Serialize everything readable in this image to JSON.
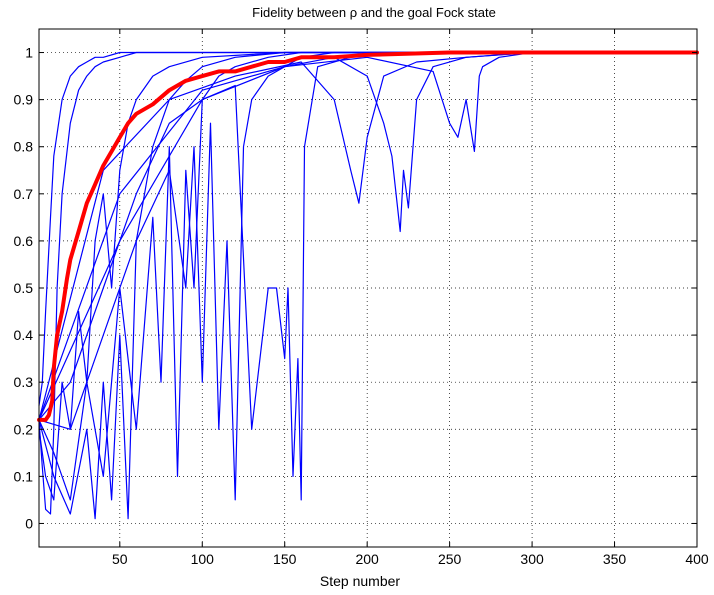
{
  "chart_data": {
    "type": "line",
    "title": "Fidelity between ρ and the goal Fock state",
    "xlabel": "Step number",
    "ylabel": "",
    "xlim": [
      1,
      400
    ],
    "ylim": [
      -0.05,
      1.05
    ],
    "xticks": [
      50,
      100,
      150,
      200,
      250,
      300,
      350,
      400
    ],
    "yticks": [
      0,
      0.1,
      0.2,
      0.3,
      0.4,
      0.5,
      0.6,
      0.7,
      0.8,
      0.9,
      1
    ],
    "ytick_labels": [
      "0",
      "0.1",
      "0.2",
      "0.3",
      "0.4",
      "0.5",
      "0.6",
      "0.7",
      "0.8",
      "0.9",
      "1"
    ],
    "grid": true,
    "colors": {
      "trajectories": "#0000ff",
      "mean": "#ff0000"
    },
    "series": [
      {
        "role": "individual trajectories (approximate envelope samples)",
        "color": "#0000ff",
        "traces": [
          {
            "x": [
              1,
              3,
              5,
              8,
              10,
              15,
              20,
              25,
              30,
              35,
              40,
              50,
              60,
              80,
              100,
              120,
              150,
              200,
              250,
              300,
              400
            ],
            "y": [
              0.25,
              0.3,
              0.45,
              0.65,
              0.78,
              0.9,
              0.95,
              0.97,
              0.98,
              0.99,
              0.99,
              1,
              1,
              1,
              1,
              1,
              1,
              1,
              1,
              1,
              1
            ]
          },
          {
            "x": [
              1,
              3,
              5,
              8,
              10,
              12,
              15,
              20,
              25,
              30,
              35,
              40,
              50,
              60,
              80,
              100,
              150,
              200,
              300,
              400
            ],
            "y": [
              0.22,
              0.12,
              0.03,
              0.02,
              0.2,
              0.5,
              0.7,
              0.85,
              0.92,
              0.95,
              0.97,
              0.98,
              0.99,
              1,
              1,
              1,
              1,
              1,
              1,
              1
            ]
          },
          {
            "x": [
              1,
              5,
              10,
              15,
              20,
              25,
              30,
              35,
              40,
              45,
              50,
              55,
              60,
              70,
              80,
              100,
              150,
              200,
              400
            ],
            "y": [
              0.2,
              0.1,
              0.05,
              0.3,
              0.2,
              0.45,
              0.3,
              0.6,
              0.7,
              0.5,
              0.75,
              0.85,
              0.9,
              0.95,
              0.97,
              0.99,
              1,
              1,
              1
            ]
          },
          {
            "x": [
              1,
              10,
              20,
              30,
              35,
              40,
              45,
              50,
              55,
              60,
              70,
              80,
              90,
              100,
              120,
              150,
              200,
              400
            ],
            "y": [
              0.22,
              0.1,
              0.02,
              0.2,
              0.01,
              0.3,
              0.05,
              0.4,
              0.01,
              0.6,
              0.8,
              0.9,
              0.94,
              0.97,
              0.99,
              1,
              1,
              1
            ]
          },
          {
            "x": [
              1,
              10,
              20,
              30,
              40,
              50,
              60,
              70,
              75,
              80,
              85,
              90,
              95,
              100,
              110,
              120,
              140,
              160,
              200,
              400
            ],
            "y": [
              0.22,
              0.15,
              0.05,
              0.3,
              0.1,
              0.5,
              0.2,
              0.65,
              0.3,
              0.8,
              0.1,
              0.75,
              0.5,
              0.9,
              0.95,
              0.97,
              0.99,
              1,
              1,
              1
            ]
          },
          {
            "x": [
              1,
              20,
              40,
              60,
              80,
              90,
              95,
              100,
              105,
              110,
              115,
              120,
              125,
              130,
              140,
              150,
              160,
              180,
              200,
              400
            ],
            "y": [
              0.22,
              0.2,
              0.4,
              0.6,
              0.75,
              0.5,
              0.8,
              0.3,
              0.85,
              0.2,
              0.6,
              0.05,
              0.8,
              0.9,
              0.95,
              0.97,
              0.99,
              1,
              1,
              1
            ]
          },
          {
            "x": [
              1,
              20,
              40,
              60,
              80,
              100,
              120,
              130,
              140,
              145,
              150,
              152,
              155,
              158,
              160,
              162,
              170,
              200,
              400
            ],
            "y": [
              0.22,
              0.3,
              0.5,
              0.7,
              0.85,
              0.9,
              0.93,
              0.2,
              0.5,
              0.5,
              0.35,
              0.5,
              0.1,
              0.35,
              0.05,
              0.8,
              0.97,
              1,
              1
            ]
          },
          {
            "x": [
              1,
              50,
              100,
              150,
              180,
              200,
              210,
              215,
              220,
              222,
              225,
              230,
              240,
              260,
              300,
              400
            ],
            "y": [
              0.22,
              0.6,
              0.9,
              0.97,
              0.99,
              0.95,
              0.85,
              0.78,
              0.62,
              0.75,
              0.67,
              0.9,
              0.97,
              0.99,
              1,
              1
            ]
          },
          {
            "x": [
              1,
              50,
              100,
              150,
              200,
              240,
              250,
              255,
              260,
              265,
              268,
              270,
              280,
              300,
              400
            ],
            "y": [
              0.22,
              0.7,
              0.92,
              0.97,
              0.99,
              0.96,
              0.85,
              0.82,
              0.9,
              0.79,
              0.95,
              0.97,
              0.99,
              1,
              1
            ]
          },
          {
            "x": [
              1,
              40,
              80,
              120,
              160,
              180,
              190,
              195,
              200,
              210,
              230,
              260,
              300,
              400
            ],
            "y": [
              0.22,
              0.75,
              0.9,
              0.95,
              0.98,
              0.9,
              0.75,
              0.68,
              0.82,
              0.95,
              0.98,
              0.99,
              1,
              1
            ]
          }
        ]
      },
      {
        "role": "mean fidelity",
        "color": "#ff0000",
        "x": [
          1,
          3,
          5,
          7,
          9,
          10,
          12,
          15,
          18,
          20,
          25,
          30,
          35,
          40,
          45,
          50,
          55,
          60,
          70,
          80,
          90,
          100,
          110,
          120,
          130,
          140,
          150,
          160,
          180,
          200,
          250,
          300,
          350,
          400
        ],
        "y": [
          0.22,
          0.22,
          0.22,
          0.23,
          0.26,
          0.33,
          0.4,
          0.45,
          0.52,
          0.56,
          0.62,
          0.68,
          0.72,
          0.76,
          0.79,
          0.82,
          0.85,
          0.87,
          0.89,
          0.92,
          0.94,
          0.95,
          0.96,
          0.96,
          0.97,
          0.98,
          0.98,
          0.99,
          0.99,
          0.995,
          1,
          1,
          1,
          1
        ]
      }
    ]
  }
}
